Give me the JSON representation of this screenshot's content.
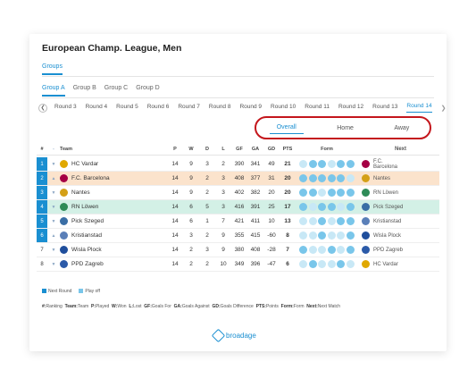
{
  "title": "European Champ. League, Men",
  "groups_tab": "Groups",
  "group_tabs": [
    "Group A",
    "Group B",
    "Group C",
    "Group D"
  ],
  "rounds": [
    "Round 3",
    "Round 4",
    "Round 5",
    "Round 6",
    "Round 7",
    "Round 8",
    "Round 9",
    "Round 10",
    "Round 11",
    "Round 12",
    "Round 13",
    "Round 14"
  ],
  "views": [
    "Overall",
    "Home",
    "Away"
  ],
  "headers": {
    "rank": "#",
    "trend": "-",
    "team": "Team",
    "p": "P",
    "w": "W",
    "d": "D",
    "l": "L",
    "gf": "GF",
    "ga": "GA",
    "gd": "GD",
    "pts": "PTS",
    "form": "Form",
    "next": "Next"
  },
  "rows": [
    {
      "rank": "1",
      "team": "HC Vardar",
      "p": "14",
      "w": "9",
      "d": "3",
      "l": "2",
      "gf": "390",
      "ga": "341",
      "gd": "49",
      "pts": "21",
      "next": "F.C. Barcelona"
    },
    {
      "rank": "2",
      "team": "F.C. Barcelona",
      "p": "14",
      "w": "9",
      "d": "2",
      "l": "3",
      "gf": "408",
      "ga": "377",
      "gd": "31",
      "pts": "20",
      "next": "Nantes"
    },
    {
      "rank": "3",
      "team": "Nantes",
      "p": "14",
      "w": "9",
      "d": "2",
      "l": "3",
      "gf": "402",
      "ga": "382",
      "gd": "20",
      "pts": "20",
      "next": "RN Löwen"
    },
    {
      "rank": "4",
      "team": "RN Löwen",
      "p": "14",
      "w": "6",
      "d": "5",
      "l": "3",
      "gf": "416",
      "ga": "391",
      "gd": "25",
      "pts": "17",
      "next": "Pick Szeged"
    },
    {
      "rank": "5",
      "team": "Pick Szeged",
      "p": "14",
      "w": "6",
      "d": "1",
      "l": "7",
      "gf": "421",
      "ga": "411",
      "gd": "10",
      "pts": "13",
      "next": "Kristianstad"
    },
    {
      "rank": "6",
      "team": "Kristianstad",
      "p": "14",
      "w": "3",
      "d": "2",
      "l": "9",
      "gf": "355",
      "ga": "415",
      "gd": "-60",
      "pts": "8",
      "next": "Wisla Plock"
    },
    {
      "rank": "7",
      "team": "Wisla Plock",
      "p": "14",
      "w": "2",
      "d": "3",
      "l": "9",
      "gf": "380",
      "ga": "408",
      "gd": "-28",
      "pts": "7",
      "next": "PPD Zagreb"
    },
    {
      "rank": "8",
      "team": "PPD Zagreb",
      "p": "14",
      "w": "2",
      "d": "2",
      "l": "10",
      "gf": "349",
      "ga": "396",
      "gd": "-47",
      "pts": "6",
      "next": "HC Vardar"
    }
  ],
  "legend": [
    "Next Round",
    "Play off"
  ],
  "abbr": [
    {
      "k": "#:",
      "v": "Ranking"
    },
    {
      "k": "Team:",
      "v": "Team"
    },
    {
      "k": "P:",
      "v": "Played"
    },
    {
      "k": "W:",
      "v": "Won"
    },
    {
      "k": "L:",
      "v": "Lost"
    },
    {
      "k": "GF:",
      "v": "Goals For"
    },
    {
      "k": "GA:",
      "v": "Goals Against"
    },
    {
      "k": "GD:",
      "v": "Goals Difference"
    },
    {
      "k": "PTS:",
      "v": "Points"
    },
    {
      "k": "Form:",
      "v": "Form"
    },
    {
      "k": "Next:",
      "v": "Next Match"
    }
  ],
  "brand": "broadage",
  "colors": {
    "accent": "#1a8fd1",
    "highlight_orange": "#fbe3cc",
    "highlight_green": "#d3f0e6",
    "ring": "#c4161c"
  }
}
